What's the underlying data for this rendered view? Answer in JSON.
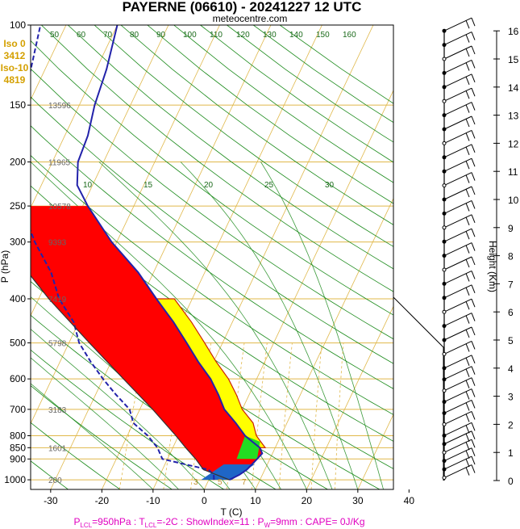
{
  "chart_data": {
    "type": "skew-t",
    "title": "PAYERNE (06610) - 20241227 12 UTC",
    "subtitle": "meteocentre.com",
    "ylabel": "P (hPa)",
    "xlabel": "T (C)",
    "height_label": "Height (Km)",
    "pressure_ticks": [
      100,
      150,
      200,
      250,
      300,
      400,
      500,
      600,
      700,
      800,
      850,
      900,
      1000
    ],
    "temperature_ticks": [
      -30,
      -20,
      -10,
      0,
      10,
      20,
      30,
      40
    ],
    "height_ticks": [
      0,
      1,
      2,
      3,
      4,
      5,
      6,
      7,
      8,
      9,
      10,
      11,
      12,
      13,
      14,
      15,
      16
    ],
    "geopotential_labels": [
      {
        "p": 150,
        "label": "13596"
      },
      {
        "p": 200,
        "label": "11965"
      },
      {
        "p": 250,
        "label": "10578"
      },
      {
        "p": 300,
        "label": "9393"
      },
      {
        "p": 400,
        "label": "7419"
      },
      {
        "p": 500,
        "label": "5798"
      },
      {
        "p": 700,
        "label": "3183"
      },
      {
        "p": 850,
        "label": "1601"
      },
      {
        "p": 1000,
        "label": "200"
      }
    ],
    "iso_lines": [
      "Iso 0",
      "3412",
      "Iso-10",
      "4819"
    ],
    "mixing_ratio_labels": [
      "3",
      "5",
      "7"
    ],
    "wet_adiabat_labels": [
      "10",
      "15",
      "20",
      "25",
      "30"
    ],
    "isotherm_labels": [
      "50",
      "60",
      "70",
      "80",
      "90",
      "100",
      "110",
      "120",
      "130",
      "140",
      "150",
      "160"
    ],
    "isotherm_top_labels": [
      "-30",
      "-20",
      "-10",
      "0",
      "10",
      "20",
      "30"
    ],
    "footer": "P_LCL=950hPa : T_LCL=-2C : ShowIndex=11 : P_W=9mm : CAPE= 0J/Kg",
    "temperature_profile": [
      {
        "p": 1000,
        "t": 4
      },
      {
        "p": 975,
        "t": 5.5
      },
      {
        "p": 950,
        "t": 6.5
      },
      {
        "p": 925,
        "t": 7.0
      },
      {
        "p": 900,
        "t": 7.5
      },
      {
        "p": 875,
        "t": 8.0
      },
      {
        "p": 850,
        "t": 7.0
      },
      {
        "p": 825,
        "t": 5.0
      },
      {
        "p": 800,
        "t": 3.0
      },
      {
        "p": 750,
        "t": 0.0
      },
      {
        "p": 700,
        "t": -3.5
      },
      {
        "p": 650,
        "t": -6.0
      },
      {
        "p": 600,
        "t": -9.0
      },
      {
        "p": 550,
        "t": -13.0
      },
      {
        "p": 500,
        "t": -17.0
      },
      {
        "p": 450,
        "t": -21.5
      },
      {
        "p": 400,
        "t": -27.0
      },
      {
        "p": 350,
        "t": -33.0
      },
      {
        "p": 300,
        "t": -41.0
      },
      {
        "p": 250,
        "t": -49.0
      },
      {
        "p": 225,
        "t": -53.0
      },
      {
        "p": 200,
        "t": -55.0
      },
      {
        "p": 175,
        "t": -55.5
      },
      {
        "p": 150,
        "t": -57.0
      },
      {
        "p": 125,
        "t": -58.0
      },
      {
        "p": 100,
        "t": -60.0
      }
    ],
    "dewpoint_profile": [
      {
        "p": 1000,
        "t": 1.0
      },
      {
        "p": 975,
        "t": 0.5
      },
      {
        "p": 950,
        "t": -1.0
      },
      {
        "p": 925,
        "t": -6.0
      },
      {
        "p": 900,
        "t": -11.0
      },
      {
        "p": 850,
        "t": -13.0
      },
      {
        "p": 800,
        "t": -16.0
      },
      {
        "p": 750,
        "t": -20.0
      },
      {
        "p": 700,
        "t": -22.0
      },
      {
        "p": 650,
        "t": -26.0
      },
      {
        "p": 600,
        "t": -30.0
      },
      {
        "p": 550,
        "t": -34.0
      },
      {
        "p": 500,
        "t": -38.0
      },
      {
        "p": 450,
        "t": -41.0
      },
      {
        "p": 400,
        "t": -46.0
      },
      {
        "p": 350,
        "t": -50.0
      },
      {
        "p": 300,
        "t": -56.0
      },
      {
        "p": 250,
        "t": -62.0
      },
      {
        "p": 200,
        "t": -67.0
      },
      {
        "p": 150,
        "t": -71.0
      },
      {
        "p": 100,
        "t": -75.0
      }
    ],
    "parcel_profile": [
      {
        "p": 1000,
        "t": 4
      },
      {
        "p": 950,
        "t": -2.0
      },
      {
        "p": 900,
        "t": -4.5
      },
      {
        "p": 850,
        "t": -7.5
      },
      {
        "p": 800,
        "t": -10.5
      },
      {
        "p": 700,
        "t": -17.5
      },
      {
        "p": 600,
        "t": -26.0
      },
      {
        "p": 500,
        "t": -36.0
      },
      {
        "p": 400,
        "t": -48.0
      },
      {
        "p": 300,
        "t": -62.0
      },
      {
        "p": 250,
        "t": -70.0
      }
    ],
    "wind_heights_km": [
      0.1,
      0.4,
      0.7,
      1.0,
      1.3,
      1.6,
      2.0,
      2.4,
      2.8,
      3.2,
      3.6,
      4.0,
      4.5,
      5.0,
      5.5,
      6.0,
      6.5,
      7.0,
      7.5,
      8.0,
      8.5,
      9.0,
      9.5,
      10.0,
      10.5,
      11.0,
      11.5,
      12.0,
      12.5,
      13.0,
      13.5,
      14.0,
      14.5,
      15.0,
      15.5,
      16.0
    ]
  }
}
